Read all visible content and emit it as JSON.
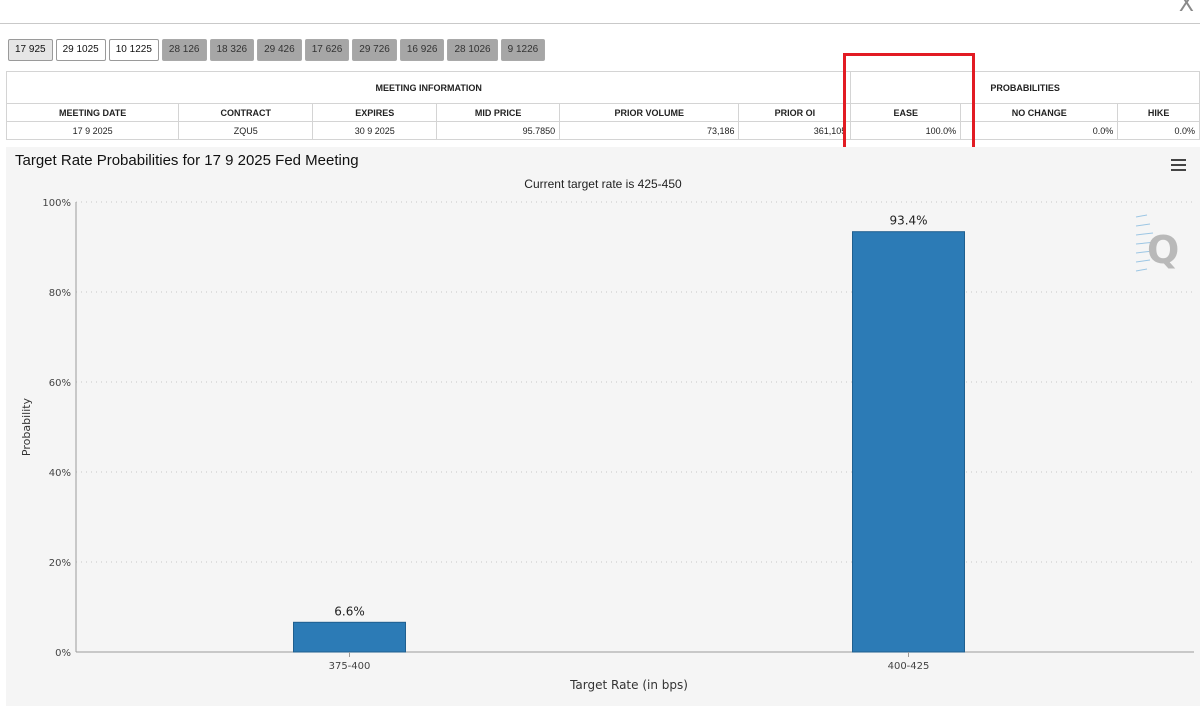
{
  "window": {
    "close_label": "X"
  },
  "tabs": [
    {
      "label": "17 925",
      "style": "light"
    },
    {
      "label": "29 1025",
      "style": "white"
    },
    {
      "label": "10 1225",
      "style": "white"
    },
    {
      "label": "28 126",
      "style": "dark"
    },
    {
      "label": "18 326",
      "style": "dark"
    },
    {
      "label": "29 426",
      "style": "dark"
    },
    {
      "label": "17 626",
      "style": "dark"
    },
    {
      "label": "29 726",
      "style": "dark"
    },
    {
      "label": "16 926",
      "style": "dark"
    },
    {
      "label": "28 1026",
      "style": "dark"
    },
    {
      "label": "9 1226",
      "style": "dark"
    }
  ],
  "table": {
    "group_meeting": "MEETING INFORMATION",
    "group_prob": "PROBABILITIES",
    "headers": [
      "MEETING DATE",
      "CONTRACT",
      "EXPIRES",
      "MID PRICE",
      "PRIOR VOLUME",
      "PRIOR OI",
      "EASE",
      "NO CHANGE",
      "HIKE"
    ],
    "row": [
      "17 9 2025",
      "ZQU5",
      "30 9 2025",
      "95.7850",
      "73,186",
      "361,105",
      "100.0%",
      "0.0%",
      "0.0%"
    ]
  },
  "highlight": {
    "color": "#e21b23",
    "target": "EASE"
  },
  "chart": {
    "title": "Target Rate Probabilities for 17 9 2025 Fed Meeting",
    "menu_icon": "hamburger-menu-icon",
    "watermark_icon": "q-logo-icon"
  },
  "chart_data": {
    "type": "bar",
    "title": "Target Rate Probabilities for 17 9 2025 Fed Meeting",
    "subtitle": "Current target rate is 425-450",
    "categories": [
      "375-400",
      "400-425"
    ],
    "values": [
      6.6,
      93.4
    ],
    "data_labels": [
      "6.6%",
      "93.4%"
    ],
    "xlabel": "Target Rate (in bps)",
    "ylabel": "Probability",
    "ylim": [
      0,
      100
    ],
    "yticks": [
      "0%",
      "20%",
      "40%",
      "60%",
      "80%",
      "100%"
    ],
    "bar_color": "#2c7bb6",
    "grid": true
  }
}
